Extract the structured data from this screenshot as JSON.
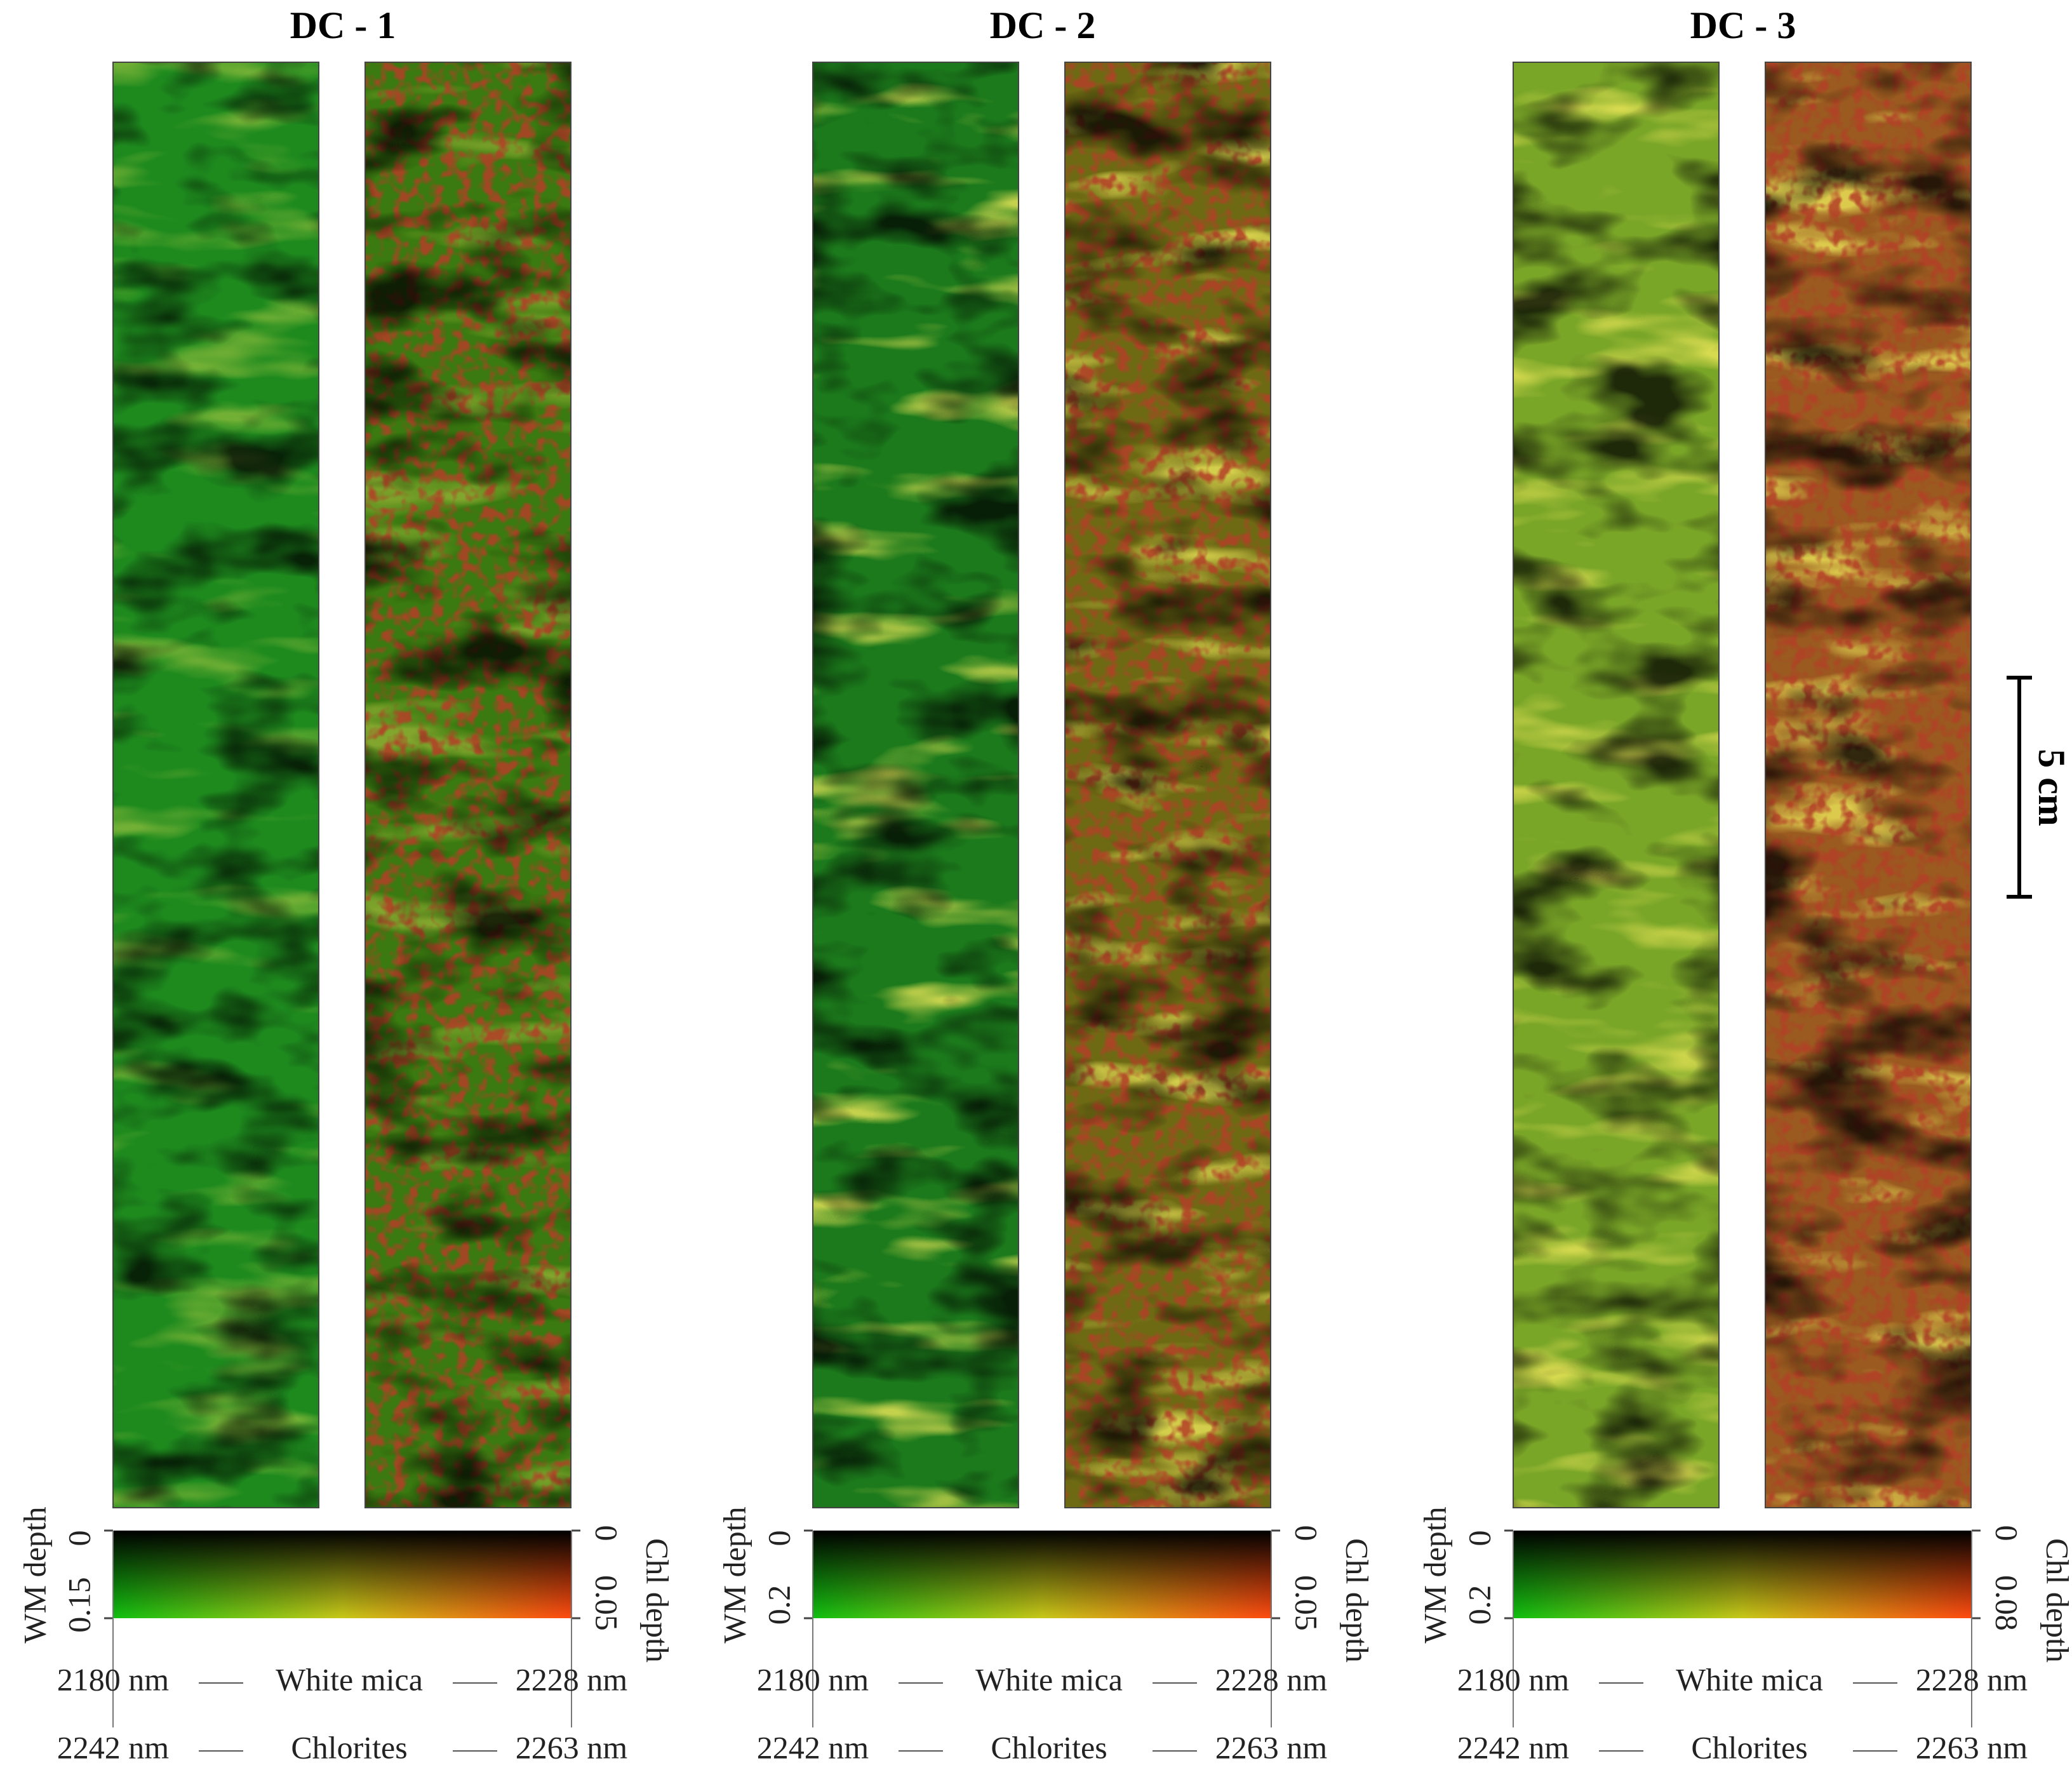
{
  "panels": [
    {
      "title": "DC - 1",
      "wm_ticks": [
        "0",
        "0.15"
      ],
      "chl_ticks": [
        "0",
        "0.05"
      ]
    },
    {
      "title": "DC - 2",
      "wm_ticks": [
        "0",
        "0.2"
      ],
      "chl_ticks": [
        "0",
        "0.05"
      ]
    },
    {
      "title": "DC - 3",
      "wm_ticks": [
        "0",
        "0.2"
      ],
      "chl_ticks": [
        "0",
        "0.08"
      ]
    }
  ],
  "wm_label": "WM depth",
  "chl_label": "Chl depth",
  "legend": [
    [
      "2180 nm",
      "White mica",
      "2228 nm"
    ],
    [
      "2242 nm",
      "Chlorites",
      "2263 nm"
    ]
  ],
  "scale_bar": "5 cm"
}
